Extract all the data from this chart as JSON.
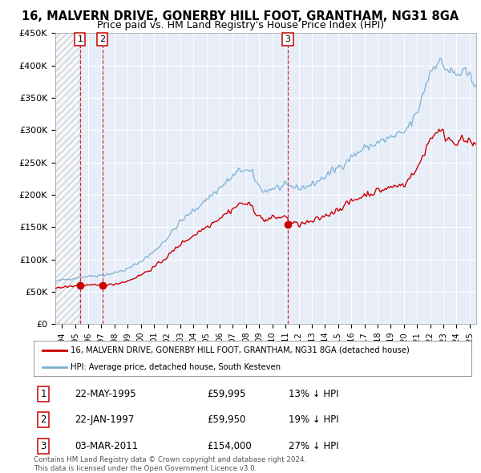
{
  "title": "16, MALVERN DRIVE, GONERBY HILL FOOT, GRANTHAM, NG31 8GA",
  "subtitle": "Price paid vs. HM Land Registry's House Price Index (HPI)",
  "ylim": [
    0,
    450000
  ],
  "yticks": [
    0,
    50000,
    100000,
    150000,
    200000,
    250000,
    300000,
    350000,
    400000,
    450000
  ],
  "ytick_labels": [
    "£0",
    "£50K",
    "£100K",
    "£150K",
    "£200K",
    "£250K",
    "£300K",
    "£350K",
    "£400K",
    "£450K"
  ],
  "xlim_start": 1993.5,
  "xlim_end": 2025.5,
  "transactions": [
    {
      "num": 1,
      "year": 1995.38,
      "price": 59995,
      "label": "22-MAY-1995",
      "price_label": "£59,995",
      "hpi_pct": "13% ↓ HPI"
    },
    {
      "num": 2,
      "year": 1997.07,
      "price": 59950,
      "label": "22-JAN-1997",
      "price_label": "£59,950",
      "hpi_pct": "19% ↓ HPI"
    },
    {
      "num": 3,
      "year": 2011.17,
      "price": 154000,
      "label": "03-MAR-2011",
      "price_label": "£154,000",
      "hpi_pct": "27% ↓ HPI"
    }
  ],
  "hpi_line_color": "#7bafd4",
  "price_line_color": "#cc0000",
  "transaction_dot_color": "#cc0000",
  "vline_color": "#cc0000",
  "background_color": "#ffffff",
  "plot_bg_color": "#e8eef8",
  "legend_label_price": "16, MALVERN DRIVE, GONERBY HILL FOOT, GRANTHAM, NG31 8GA (detached house)",
  "legend_label_hpi": "HPI: Average price, detached house, South Kesteven",
  "footer": "Contains HM Land Registry data © Crown copyright and database right 2024.\nThis data is licensed under the Open Government Licence v3.0.",
  "title_fontsize": 10.5,
  "subtitle_fontsize": 9,
  "tick_fontsize": 8
}
